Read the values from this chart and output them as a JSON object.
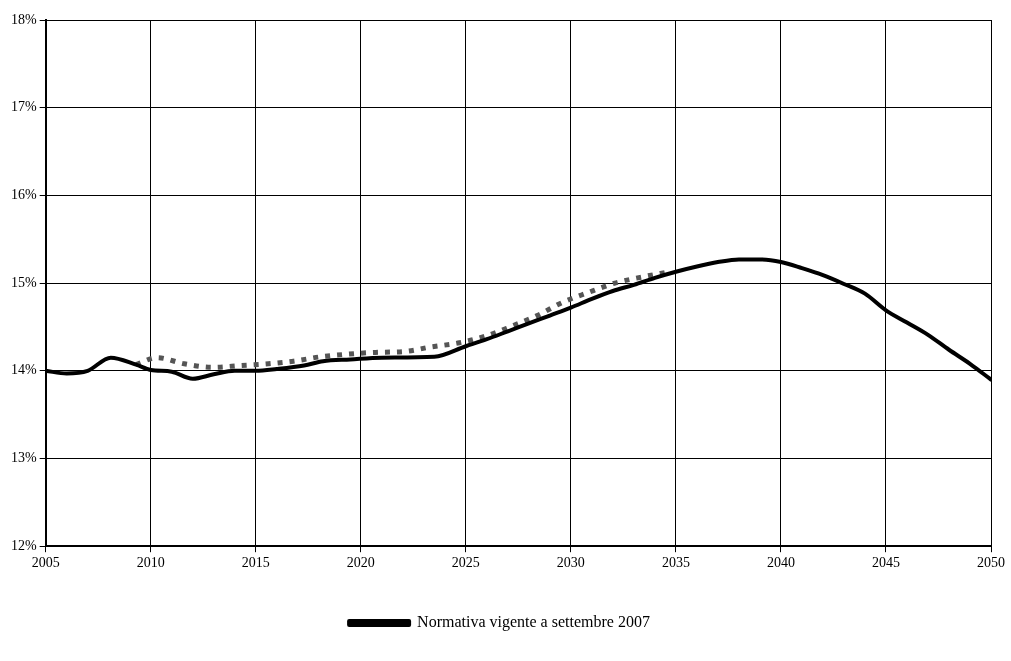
{
  "chart_data": {
    "type": "line",
    "xlim": [
      2005,
      2050
    ],
    "xticks": [
      2005,
      2010,
      2015,
      2020,
      2025,
      2030,
      2035,
      2040,
      2045,
      2050
    ],
    "ylim": [
      12,
      18
    ],
    "yticks": [
      {
        "value": 12,
        "label": "12%"
      },
      {
        "value": 13,
        "label": "13%"
      },
      {
        "value": 14,
        "label": "14%"
      },
      {
        "value": 15,
        "label": "15%"
      },
      {
        "value": 16,
        "label": "16%"
      },
      {
        "value": 17,
        "label": "17%"
      },
      {
        "value": 18,
        "label": "18%"
      }
    ],
    "grid": true,
    "legend": "bottom",
    "marker": "none",
    "series": [
      {
        "name": "Normativa vigente a settembre 2007",
        "color": "#000000",
        "line_style": "solid",
        "x": [
          2005,
          2006,
          2007,
          2008.1,
          2009.3,
          2010,
          2011,
          2012,
          2013,
          2014,
          2015,
          2016,
          2017.3,
          2018.2,
          2019.5,
          2021,
          2023.5,
          2025,
          2026,
          2027,
          2028,
          2029,
          2030,
          2031,
          2032,
          2033,
          2034,
          2035,
          2036,
          2037,
          2038,
          2039,
          2040,
          2041,
          2042,
          2043,
          2044,
          2045,
          2046,
          2047,
          2048,
          2049,
          2050
        ],
        "values": [
          14.0,
          13.97,
          14.0,
          14.15,
          14.07,
          14.01,
          13.99,
          13.91,
          13.96,
          14.0,
          14.0,
          14.02,
          14.06,
          14.11,
          14.13,
          14.15,
          14.16,
          14.28,
          14.36,
          14.45,
          14.54,
          14.63,
          14.72,
          14.82,
          14.91,
          14.98,
          15.06,
          15.13,
          15.19,
          15.24,
          15.27,
          15.27,
          15.24,
          15.17,
          15.09,
          14.99,
          14.88,
          14.69,
          14.55,
          14.41,
          14.24,
          14.08,
          13.9
        ]
      },
      {
        "color": "#555555",
        "line_style": "dotted",
        "x": [
          2009.3,
          2010.3,
          2011.6,
          2012.9,
          2014.3,
          2015.6,
          2016.8,
          2018.1,
          2019.4,
          2020.7,
          2022.1,
          2023.3,
          2024.7,
          2026,
          2027.2,
          2028.4,
          2029.6,
          2030.8,
          2032.1,
          2033.4,
          2034.7
        ],
        "values": [
          14.07,
          14.15,
          14.08,
          14.04,
          14.06,
          14.08,
          14.11,
          14.16,
          14.19,
          14.21,
          14.22,
          14.27,
          14.32,
          14.4,
          14.51,
          14.63,
          14.78,
          14.89,
          15.0,
          15.07,
          15.13
        ]
      }
    ]
  }
}
